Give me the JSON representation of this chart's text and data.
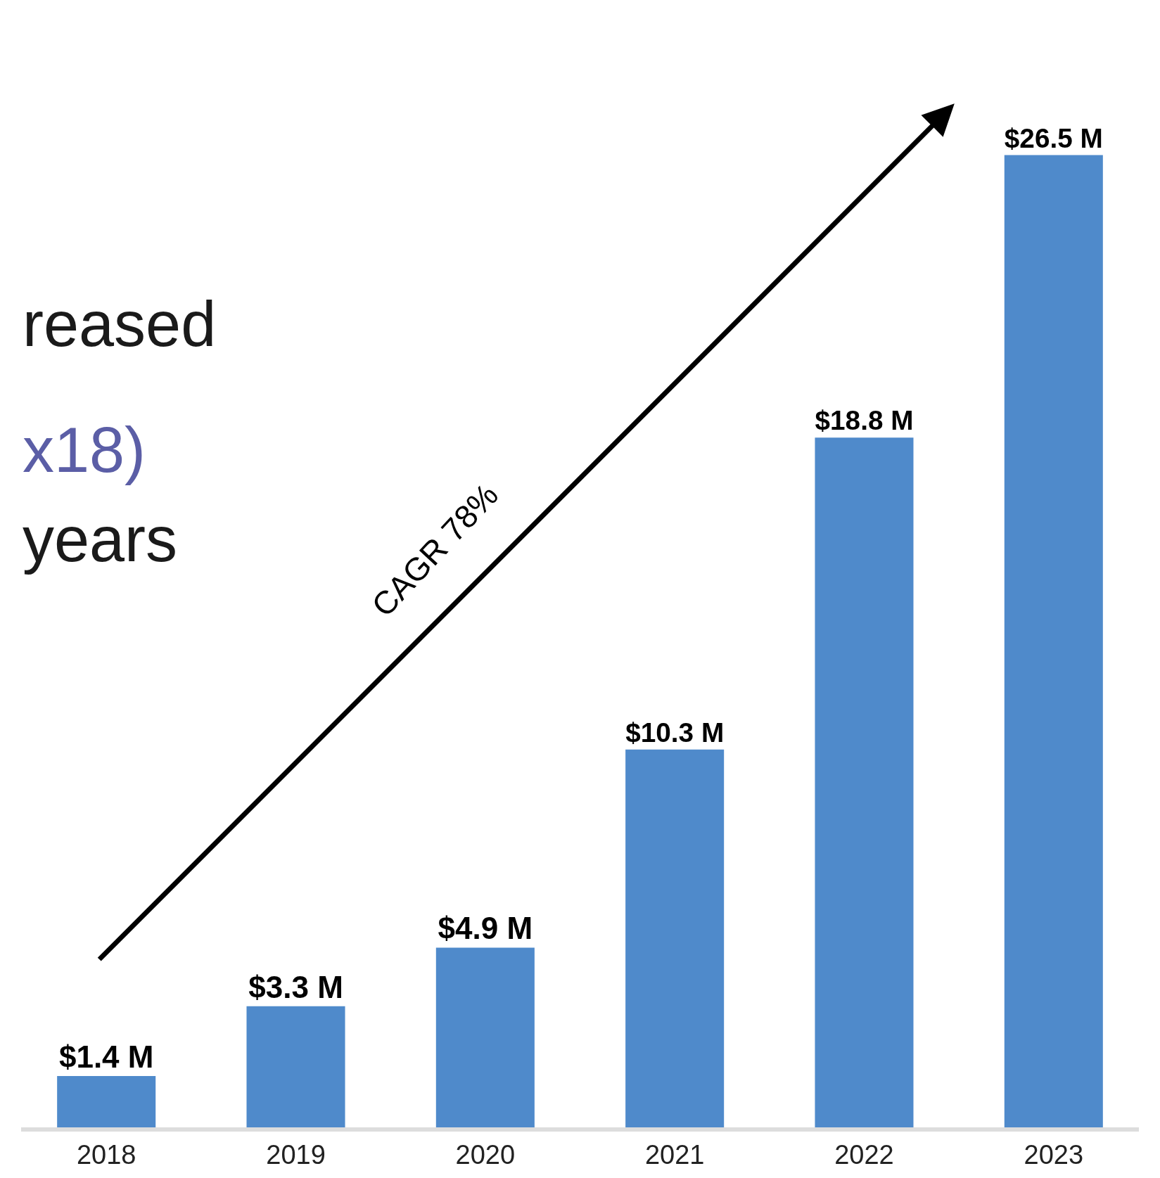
{
  "chart_data": {
    "type": "bar",
    "categories": [
      "2018",
      "2019",
      "2020",
      "2021",
      "2022",
      "2023"
    ],
    "values": [
      1.4,
      3.3,
      4.9,
      10.3,
      18.8,
      26.5
    ],
    "value_labels": [
      "$1.4 M",
      "$3.3 M",
      "$4.9 M",
      "$10.3 M",
      "$18.8 M",
      "$26.5 M"
    ],
    "color": "#4f8acb",
    "annotations": [
      "reased",
      "x18)",
      "years",
      "CAGR 78%"
    ],
    "legend": false
  }
}
